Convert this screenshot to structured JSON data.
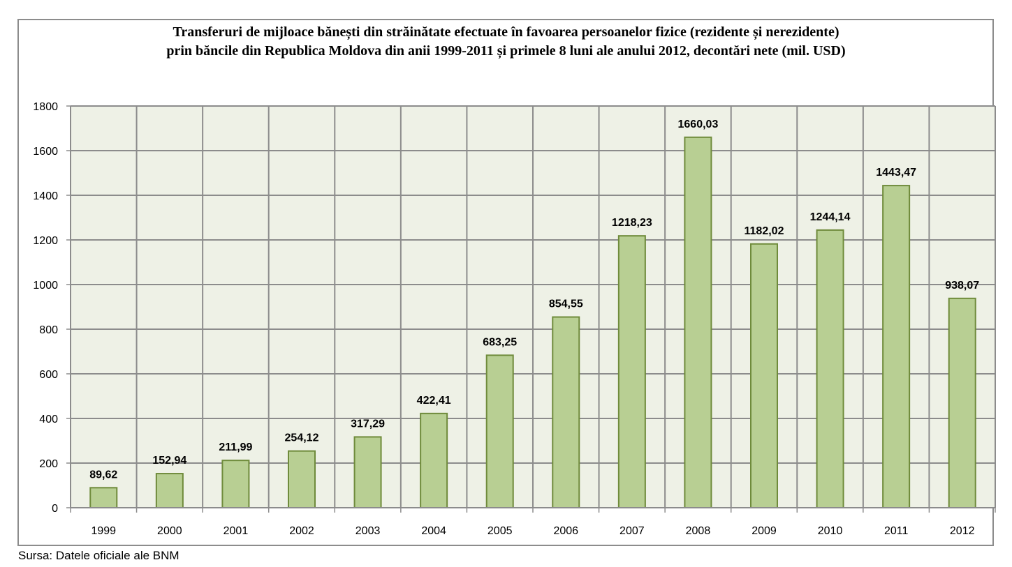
{
  "chart_data": {
    "type": "bar",
    "title_lines": [
      "Transferuri de mijloace bănești din străinătate efectuate în favoarea persoanelor fizice (rezidente și nerezidente)",
      "prin băncile din Republica Moldova din anii 1999-2011 și primele 8 luni ale anului 2012, decontări nete (mil. USD)"
    ],
    "categories": [
      "1999",
      "2000",
      "2001",
      "2002",
      "2003",
      "2004",
      "2005",
      "2006",
      "2007",
      "2008",
      "2009",
      "2010",
      "2011",
      "2012"
    ],
    "values": [
      89.62,
      152.94,
      211.99,
      254.12,
      317.29,
      422.41,
      683.25,
      854.55,
      1218.23,
      1660.03,
      1182.02,
      1244.14,
      1443.47,
      938.07
    ],
    "value_labels": [
      "89,62",
      "152,94",
      "211,99",
      "254,12",
      "317,29",
      "422,41",
      "683,25",
      "854,55",
      "1218,23",
      "1660,03",
      "1182,02",
      "1244,14",
      "1443,47",
      "938,07"
    ],
    "ylim": [
      0,
      1800
    ],
    "yticks": [
      "0",
      "200",
      "400",
      "600",
      "800",
      "1000",
      "1200",
      "1400",
      "1600",
      "1800"
    ],
    "xlabel": "",
    "ylabel": "",
    "grid": true,
    "legend": "none",
    "colors": {
      "bar_fill": "#b8cf93",
      "bar_stroke": "#6f8b3b",
      "plot_bg": "#eef1e6",
      "grid": "#8c8c8c"
    }
  },
  "source_note": "Sursa: Datele oficiale ale BNM"
}
